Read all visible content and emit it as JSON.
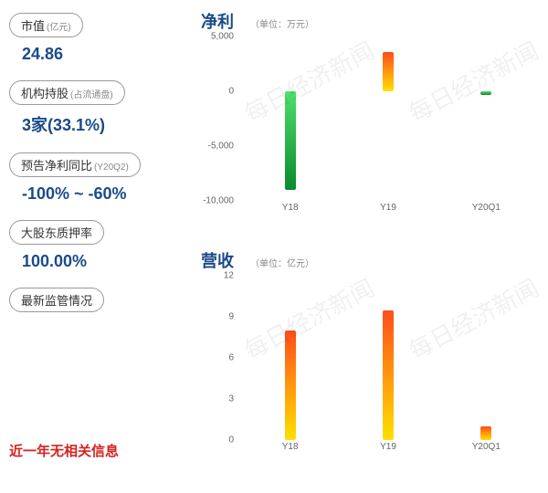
{
  "watermark_text": "每日经济新闻",
  "left": {
    "items": [
      {
        "label": "市值",
        "sub": "(亿元)",
        "value": "24.86"
      },
      {
        "label": "机构持股",
        "sub": "(占流通盘)",
        "value": "3家(33.1%)"
      },
      {
        "label": "预告净利同比",
        "sub": "(Y20Q2)",
        "value": "-100% ~ -60%"
      },
      {
        "label": "大股东质押率",
        "sub": "",
        "value": "100.00%"
      },
      {
        "label": "最新监管情况",
        "sub": "",
        "value": ""
      }
    ],
    "bottom_note": "近一年无相关信息"
  },
  "charts": {
    "profit": {
      "title": "净利",
      "unit": "（单位：万元）",
      "ylim": [
        -10000,
        5000
      ],
      "yticks": [
        5000,
        0,
        -5000,
        -10000
      ],
      "categories": [
        "Y18",
        "Y19",
        "Y20Q1"
      ],
      "values": [
        -9000,
        3600,
        -300
      ],
      "positive_gradient": [
        "#ff4d1a",
        "#ffe000"
      ],
      "negative_gradient": [
        "#0b8a2f",
        "#4de06a"
      ],
      "tick_color": "#666666",
      "label_fontsize": 10
    },
    "revenue": {
      "title": "营收",
      "unit": "（单位：亿元）",
      "ylim": [
        0,
        12
      ],
      "yticks": [
        12,
        9,
        6,
        3,
        0
      ],
      "categories": [
        "Y18",
        "Y19",
        "Y20Q1"
      ],
      "values": [
        8.0,
        9.5,
        1.0
      ],
      "positive_gradient": [
        "#ff4d1a",
        "#ffe000"
      ],
      "tick_color": "#666666",
      "label_fontsize": 10
    }
  },
  "colors": {
    "value_text": "#1a4a8a",
    "pill_border": "#999999",
    "note_red": "#d62222",
    "background": "#ffffff"
  }
}
